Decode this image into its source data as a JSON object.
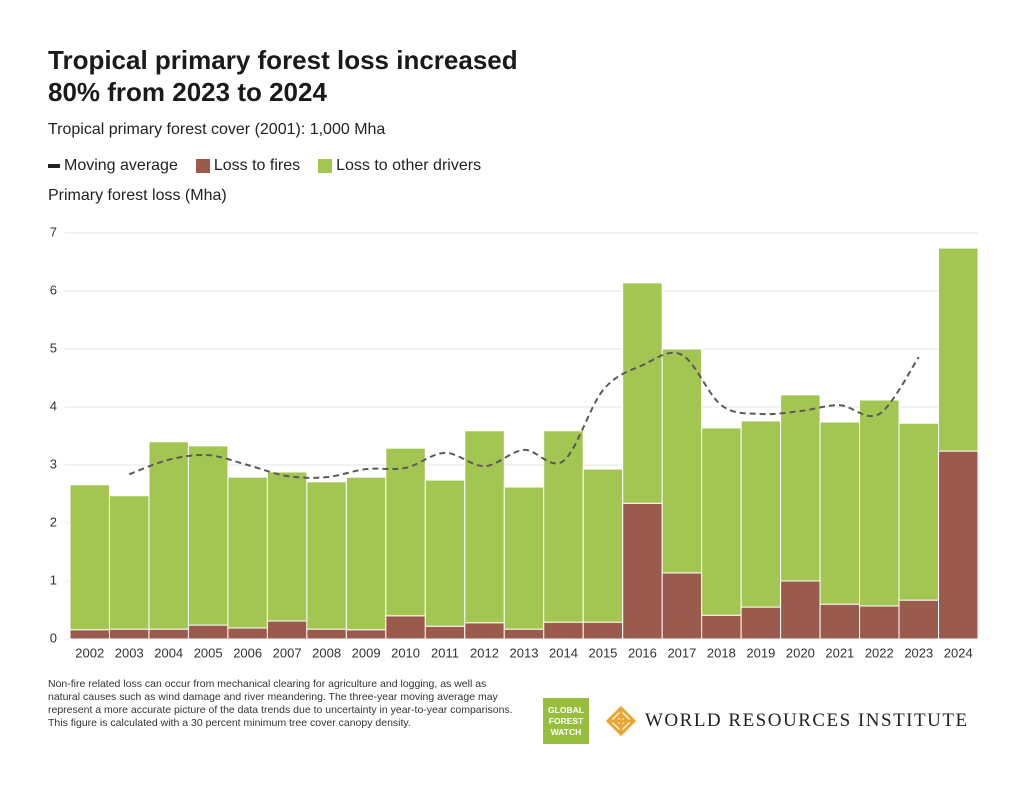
{
  "chart_data": {
    "type": "bar",
    "stacked": true,
    "title": "Tropical primary forest loss increased 80% from 2023 to 2024",
    "subtitle": "Tropical primary forest cover (2001): 1,000 Mha",
    "y_label": "Primary forest loss (Mha)",
    "categories": [
      "2002",
      "2003",
      "2004",
      "2005",
      "2006",
      "2007",
      "2008",
      "2009",
      "2010",
      "2011",
      "2012",
      "2013",
      "2014",
      "2015",
      "2016",
      "2017",
      "2018",
      "2019",
      "2020",
      "2021",
      "2022",
      "2023",
      "2024"
    ],
    "series": [
      {
        "name": "Moving average",
        "type": "line",
        "color": "#5a5a5a",
        "values": [
          null,
          2.84,
          3.09,
          3.17,
          3.0,
          2.81,
          2.79,
          2.93,
          2.95,
          3.21,
          2.98,
          3.26,
          3.07,
          4.29,
          4.72,
          4.9,
          4.03,
          3.88,
          3.93,
          4.03,
          3.88,
          4.86,
          null
        ]
      },
      {
        "name": "Loss to fires",
        "color": "#9a5b4d",
        "values": [
          0.16,
          0.17,
          0.17,
          0.24,
          0.19,
          0.31,
          0.17,
          0.16,
          0.4,
          0.22,
          0.28,
          0.17,
          0.29,
          0.29,
          2.34,
          1.14,
          0.41,
          0.55,
          1.0,
          0.6,
          0.57,
          0.67,
          3.24
        ]
      },
      {
        "name": "Loss to other drivers",
        "color": "#a3c552",
        "values": [
          2.5,
          2.3,
          3.23,
          3.09,
          2.6,
          2.57,
          2.54,
          2.63,
          2.89,
          2.52,
          3.31,
          2.45,
          3.3,
          2.64,
          3.8,
          3.86,
          3.23,
          3.21,
          3.21,
          3.14,
          3.55,
          3.05,
          3.5
        ]
      }
    ],
    "ylim": [
      0,
      7
    ],
    "yticks": [
      0,
      1,
      2,
      3,
      4,
      5,
      6,
      7
    ],
    "grid": true
  },
  "footnote": "Non-fire related loss can occur from mechanical clearing for agriculture and logging, as well as natural causes such as wind damage and river meandering. The three-year moving average may represent a more accurate picture of the data trends due to uncertainty in year-to-year comparisons. This figure is calculated with a 30 percent minimum tree cover canopy density.",
  "logos": {
    "gfw": [
      "GLOBAL",
      "FOREST",
      "WATCH"
    ],
    "wri": "WORLD RESOURCES INSTITUTE"
  }
}
